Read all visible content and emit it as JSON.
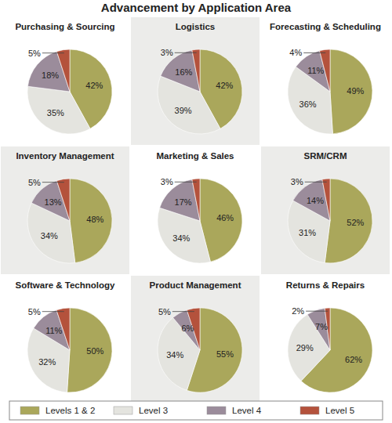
{
  "title": "Advancement by Application Area",
  "legend": "bottom",
  "chart_data": [
    {
      "type": "pie",
      "title": "Purchasing & Sourcing",
      "categories": [
        "Levels 1 & 2",
        "Level 3",
        "Level 4",
        "Level 5"
      ],
      "values": [
        42,
        35,
        18,
        5
      ],
      "value_labels": [
        "42%",
        "35%",
        "18%",
        "5%"
      ],
      "colors": [
        "#aaa75b",
        "#e4e4df",
        "#9b8c9b",
        "#b4523c"
      ],
      "data_labels": true
    },
    {
      "type": "pie",
      "title": "Logistics",
      "categories": [
        "Levels 1 & 2",
        "Level 3",
        "Level 4",
        "Level 5"
      ],
      "values": [
        42,
        39,
        16,
        3
      ],
      "value_labels": [
        "42%",
        "39%",
        "16%",
        "3%"
      ],
      "colors": [
        "#aaa75b",
        "#e4e4df",
        "#9b8c9b",
        "#b4523c"
      ],
      "data_labels": true
    },
    {
      "type": "pie",
      "title": "Forecasting & Scheduling",
      "categories": [
        "Levels 1 & 2",
        "Level 3",
        "Level 4",
        "Level 5"
      ],
      "values": [
        49,
        36,
        11,
        4
      ],
      "value_labels": [
        "49%",
        "36%",
        "11%",
        "4%"
      ],
      "colors": [
        "#aaa75b",
        "#e4e4df",
        "#9b8c9b",
        "#b4523c"
      ],
      "data_labels": true
    },
    {
      "type": "pie",
      "title": "Inventory Management",
      "categories": [
        "Levels 1 & 2",
        "Level 3",
        "Level 4",
        "Level 5"
      ],
      "values": [
        48,
        34,
        13,
        5
      ],
      "value_labels": [
        "48%",
        "34%",
        "13%",
        "5%"
      ],
      "colors": [
        "#aaa75b",
        "#e4e4df",
        "#9b8c9b",
        "#b4523c"
      ],
      "data_labels": true
    },
    {
      "type": "pie",
      "title": "Marketing & Sales",
      "categories": [
        "Levels 1 & 2",
        "Level 3",
        "Level 4",
        "Level 5"
      ],
      "values": [
        46,
        34,
        17,
        3
      ],
      "value_labels": [
        "46%",
        "34%",
        "17%",
        "3%"
      ],
      "colors": [
        "#aaa75b",
        "#e4e4df",
        "#9b8c9b",
        "#b4523c"
      ],
      "data_labels": true
    },
    {
      "type": "pie",
      "title": "SRM/CRM",
      "categories": [
        "Levels 1 & 2",
        "Level 3",
        "Level 4",
        "Level 5"
      ],
      "values": [
        52,
        31,
        14,
        3
      ],
      "value_labels": [
        "52%",
        "31%",
        "14%",
        "3%"
      ],
      "colors": [
        "#aaa75b",
        "#e4e4df",
        "#9b8c9b",
        "#b4523c"
      ],
      "data_labels": true
    },
    {
      "type": "pie",
      "title": "Software & Technology",
      "categories": [
        "Levels 1 & 2",
        "Level 3",
        "Level 4",
        "Level 5"
      ],
      "values": [
        50,
        32,
        11,
        5
      ],
      "value_labels": [
        "50%",
        "32%",
        "11%",
        "5%"
      ],
      "colors": [
        "#aaa75b",
        "#e4e4df",
        "#9b8c9b",
        "#b4523c"
      ],
      "data_labels": true
    },
    {
      "type": "pie",
      "title": "Product Management",
      "categories": [
        "Levels 1 & 2",
        "Level 3",
        "Level 4",
        "Level 5"
      ],
      "values": [
        55,
        34,
        6,
        5
      ],
      "value_labels": [
        "55%",
        "34%",
        "6%",
        "5%"
      ],
      "colors": [
        "#aaa75b",
        "#e4e4df",
        "#9b8c9b",
        "#b4523c"
      ],
      "data_labels": true
    },
    {
      "type": "pie",
      "title": "Returns & Repairs",
      "categories": [
        "Levels 1 & 2",
        "Level 3",
        "Level 4",
        "Level 5"
      ],
      "values": [
        62,
        29,
        7,
        2
      ],
      "value_labels": [
        "62%",
        "29%",
        "7%",
        "2%"
      ],
      "colors": [
        "#aaa75b",
        "#e4e4df",
        "#9b8c9b",
        "#b4523c"
      ],
      "data_labels": true
    }
  ]
}
